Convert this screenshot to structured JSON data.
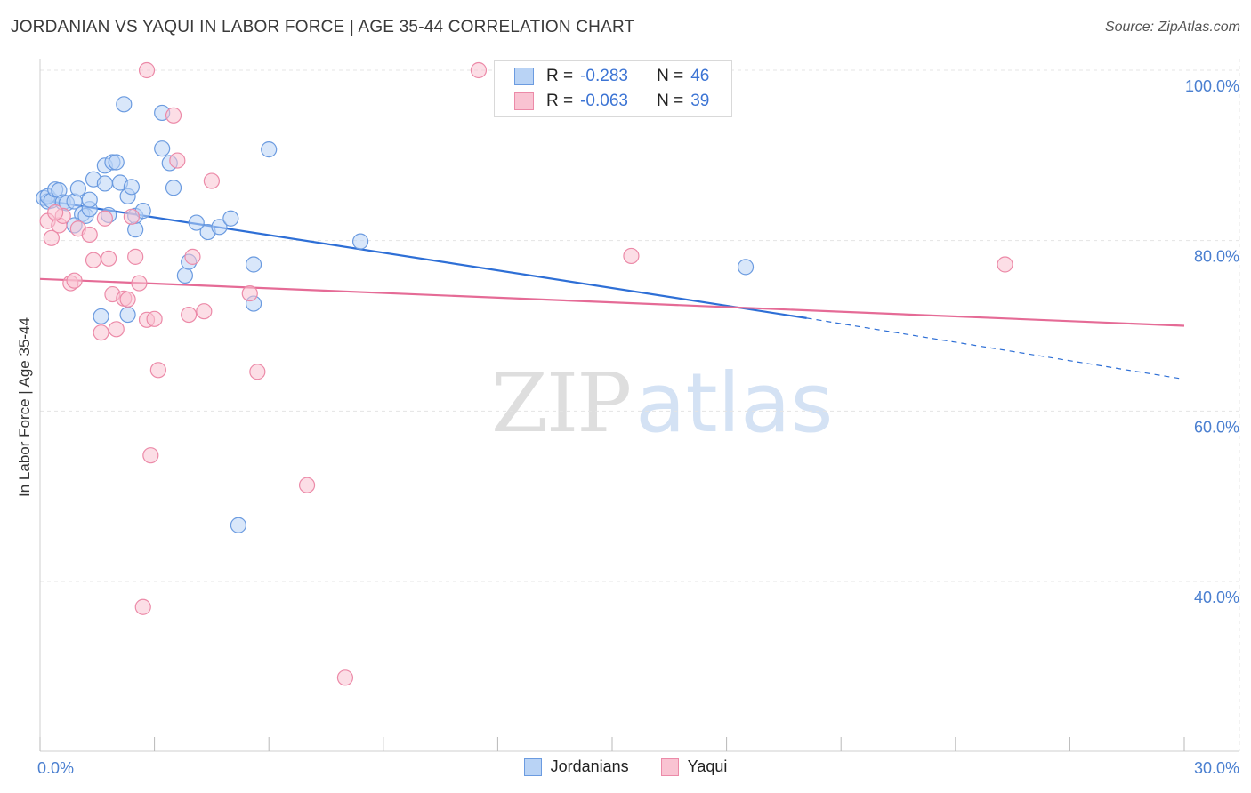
{
  "header": {
    "title": "JORDANIAN VS YAQUI IN LABOR FORCE | AGE 35-44 CORRELATION CHART",
    "source": "Source: ZipAtlas.com"
  },
  "watermark": {
    "zip": "ZIP",
    "atlas": "atlas"
  },
  "legend": {
    "rows": [
      {
        "r_label": "R =",
        "r_value": "-0.283",
        "n_label": "N =",
        "n_value": "46"
      },
      {
        "r_label": "R =",
        "r_value": "-0.063",
        "n_label": "N =",
        "n_value": "39"
      }
    ]
  },
  "bottom_legend": {
    "items": [
      "Jordanians",
      "Yaqui"
    ]
  },
  "colors": {
    "jordanians_fill": "#b9d3f5",
    "jordanians_stroke": "#6b9be0",
    "jordanians_line": "#2e6fd6",
    "yaqui_fill": "#f9c3d2",
    "yaqui_stroke": "#ec8aa8",
    "yaqui_line": "#e56b96",
    "grid": "#e4e4e4",
    "tick_label": "#4a7fd0"
  },
  "chart_data": {
    "type": "scatter",
    "title": "JORDANIAN VS YAQUI IN LABOR FORCE | AGE 35-44 CORRELATION CHART",
    "xlabel": "",
    "ylabel": "In Labor Force | Age 35-44",
    "xlim": [
      0,
      30
    ],
    "ylim": [
      20,
      102
    ],
    "x_tick_labels": [
      {
        "value": 0,
        "label": "0.0%"
      },
      {
        "value": 30,
        "label": "30.0%"
      }
    ],
    "y_tick_labels": [
      {
        "value": 100,
        "label": "100.0%"
      },
      {
        "value": 80,
        "label": "80.0%"
      },
      {
        "value": 60,
        "label": "60.0%"
      },
      {
        "value": 40,
        "label": "40.0%"
      }
    ],
    "series": [
      {
        "name": "Jordanians",
        "r": -0.283,
        "n": 46,
        "trend": {
          "x0": 0,
          "y0": 84.8,
          "x1": 20.1,
          "y1": 70.9,
          "dash_to_x": 29.9,
          "dash_to_y": 63.8
        },
        "points": [
          [
            0.1,
            85.0
          ],
          [
            0.2,
            84.6
          ],
          [
            0.2,
            85.2
          ],
          [
            0.3,
            84.7
          ],
          [
            0.4,
            86.0
          ],
          [
            0.5,
            85.9
          ],
          [
            0.6,
            84.5
          ],
          [
            0.7,
            84.4
          ],
          [
            0.9,
            84.6
          ],
          [
            1.0,
            86.1
          ],
          [
            1.1,
            83.1
          ],
          [
            1.2,
            82.9
          ],
          [
            1.3,
            83.7
          ],
          [
            1.4,
            87.2
          ],
          [
            1.3,
            84.8
          ],
          [
            1.7,
            88.8
          ],
          [
            1.9,
            89.2
          ],
          [
            2.0,
            89.2
          ],
          [
            1.7,
            86.7
          ],
          [
            2.1,
            86.8
          ],
          [
            2.3,
            85.2
          ],
          [
            2.4,
            86.3
          ],
          [
            2.5,
            81.3
          ],
          [
            2.5,
            82.9
          ],
          [
            2.7,
            83.5
          ],
          [
            2.2,
            96.0
          ],
          [
            3.2,
            95.0
          ],
          [
            3.2,
            90.8
          ],
          [
            3.4,
            89.1
          ],
          [
            3.5,
            86.2
          ],
          [
            1.8,
            83.0
          ],
          [
            1.6,
            71.1
          ],
          [
            2.3,
            71.3
          ],
          [
            3.8,
            75.9
          ],
          [
            3.9,
            77.5
          ],
          [
            4.1,
            82.1
          ],
          [
            4.4,
            81.0
          ],
          [
            4.7,
            81.6
          ],
          [
            5.0,
            82.6
          ],
          [
            5.6,
            77.2
          ],
          [
            5.6,
            72.6
          ],
          [
            6.0,
            90.7
          ],
          [
            8.4,
            79.9
          ],
          [
            18.5,
            76.9
          ],
          [
            5.2,
            46.6
          ],
          [
            0.9,
            81.8
          ]
        ]
      },
      {
        "name": "Yaqui",
        "r": -0.063,
        "n": 39,
        "trend": {
          "x0": 0,
          "y0": 75.5,
          "x1": 30,
          "y1": 70.0
        },
        "points": [
          [
            0.2,
            82.3
          ],
          [
            0.3,
            80.3
          ],
          [
            0.5,
            81.8
          ],
          [
            0.6,
            82.9
          ],
          [
            0.8,
            75.0
          ],
          [
            0.9,
            75.3
          ],
          [
            1.0,
            81.4
          ],
          [
            1.3,
            80.7
          ],
          [
            1.4,
            77.7
          ],
          [
            1.6,
            69.2
          ],
          [
            1.8,
            77.9
          ],
          [
            1.9,
            73.7
          ],
          [
            2.0,
            69.6
          ],
          [
            2.2,
            73.2
          ],
          [
            2.3,
            73.1
          ],
          [
            2.4,
            82.8
          ],
          [
            2.5,
            78.1
          ],
          [
            2.6,
            75.0
          ],
          [
            2.8,
            70.7
          ],
          [
            3.0,
            70.8
          ],
          [
            3.1,
            64.8
          ],
          [
            2.9,
            54.8
          ],
          [
            2.7,
            37.0
          ],
          [
            2.8,
            100.0
          ],
          [
            3.5,
            94.7
          ],
          [
            3.6,
            89.4
          ],
          [
            3.9,
            71.3
          ],
          [
            4.0,
            78.1
          ],
          [
            4.3,
            71.7
          ],
          [
            4.5,
            87.0
          ],
          [
            5.5,
            73.8
          ],
          [
            5.7,
            64.6
          ],
          [
            7.0,
            51.3
          ],
          [
            8.0,
            28.7
          ],
          [
            11.5,
            100.0
          ],
          [
            15.5,
            78.2
          ],
          [
            25.3,
            77.2
          ],
          [
            0.4,
            83.3
          ],
          [
            1.7,
            82.6
          ]
        ]
      }
    ]
  }
}
